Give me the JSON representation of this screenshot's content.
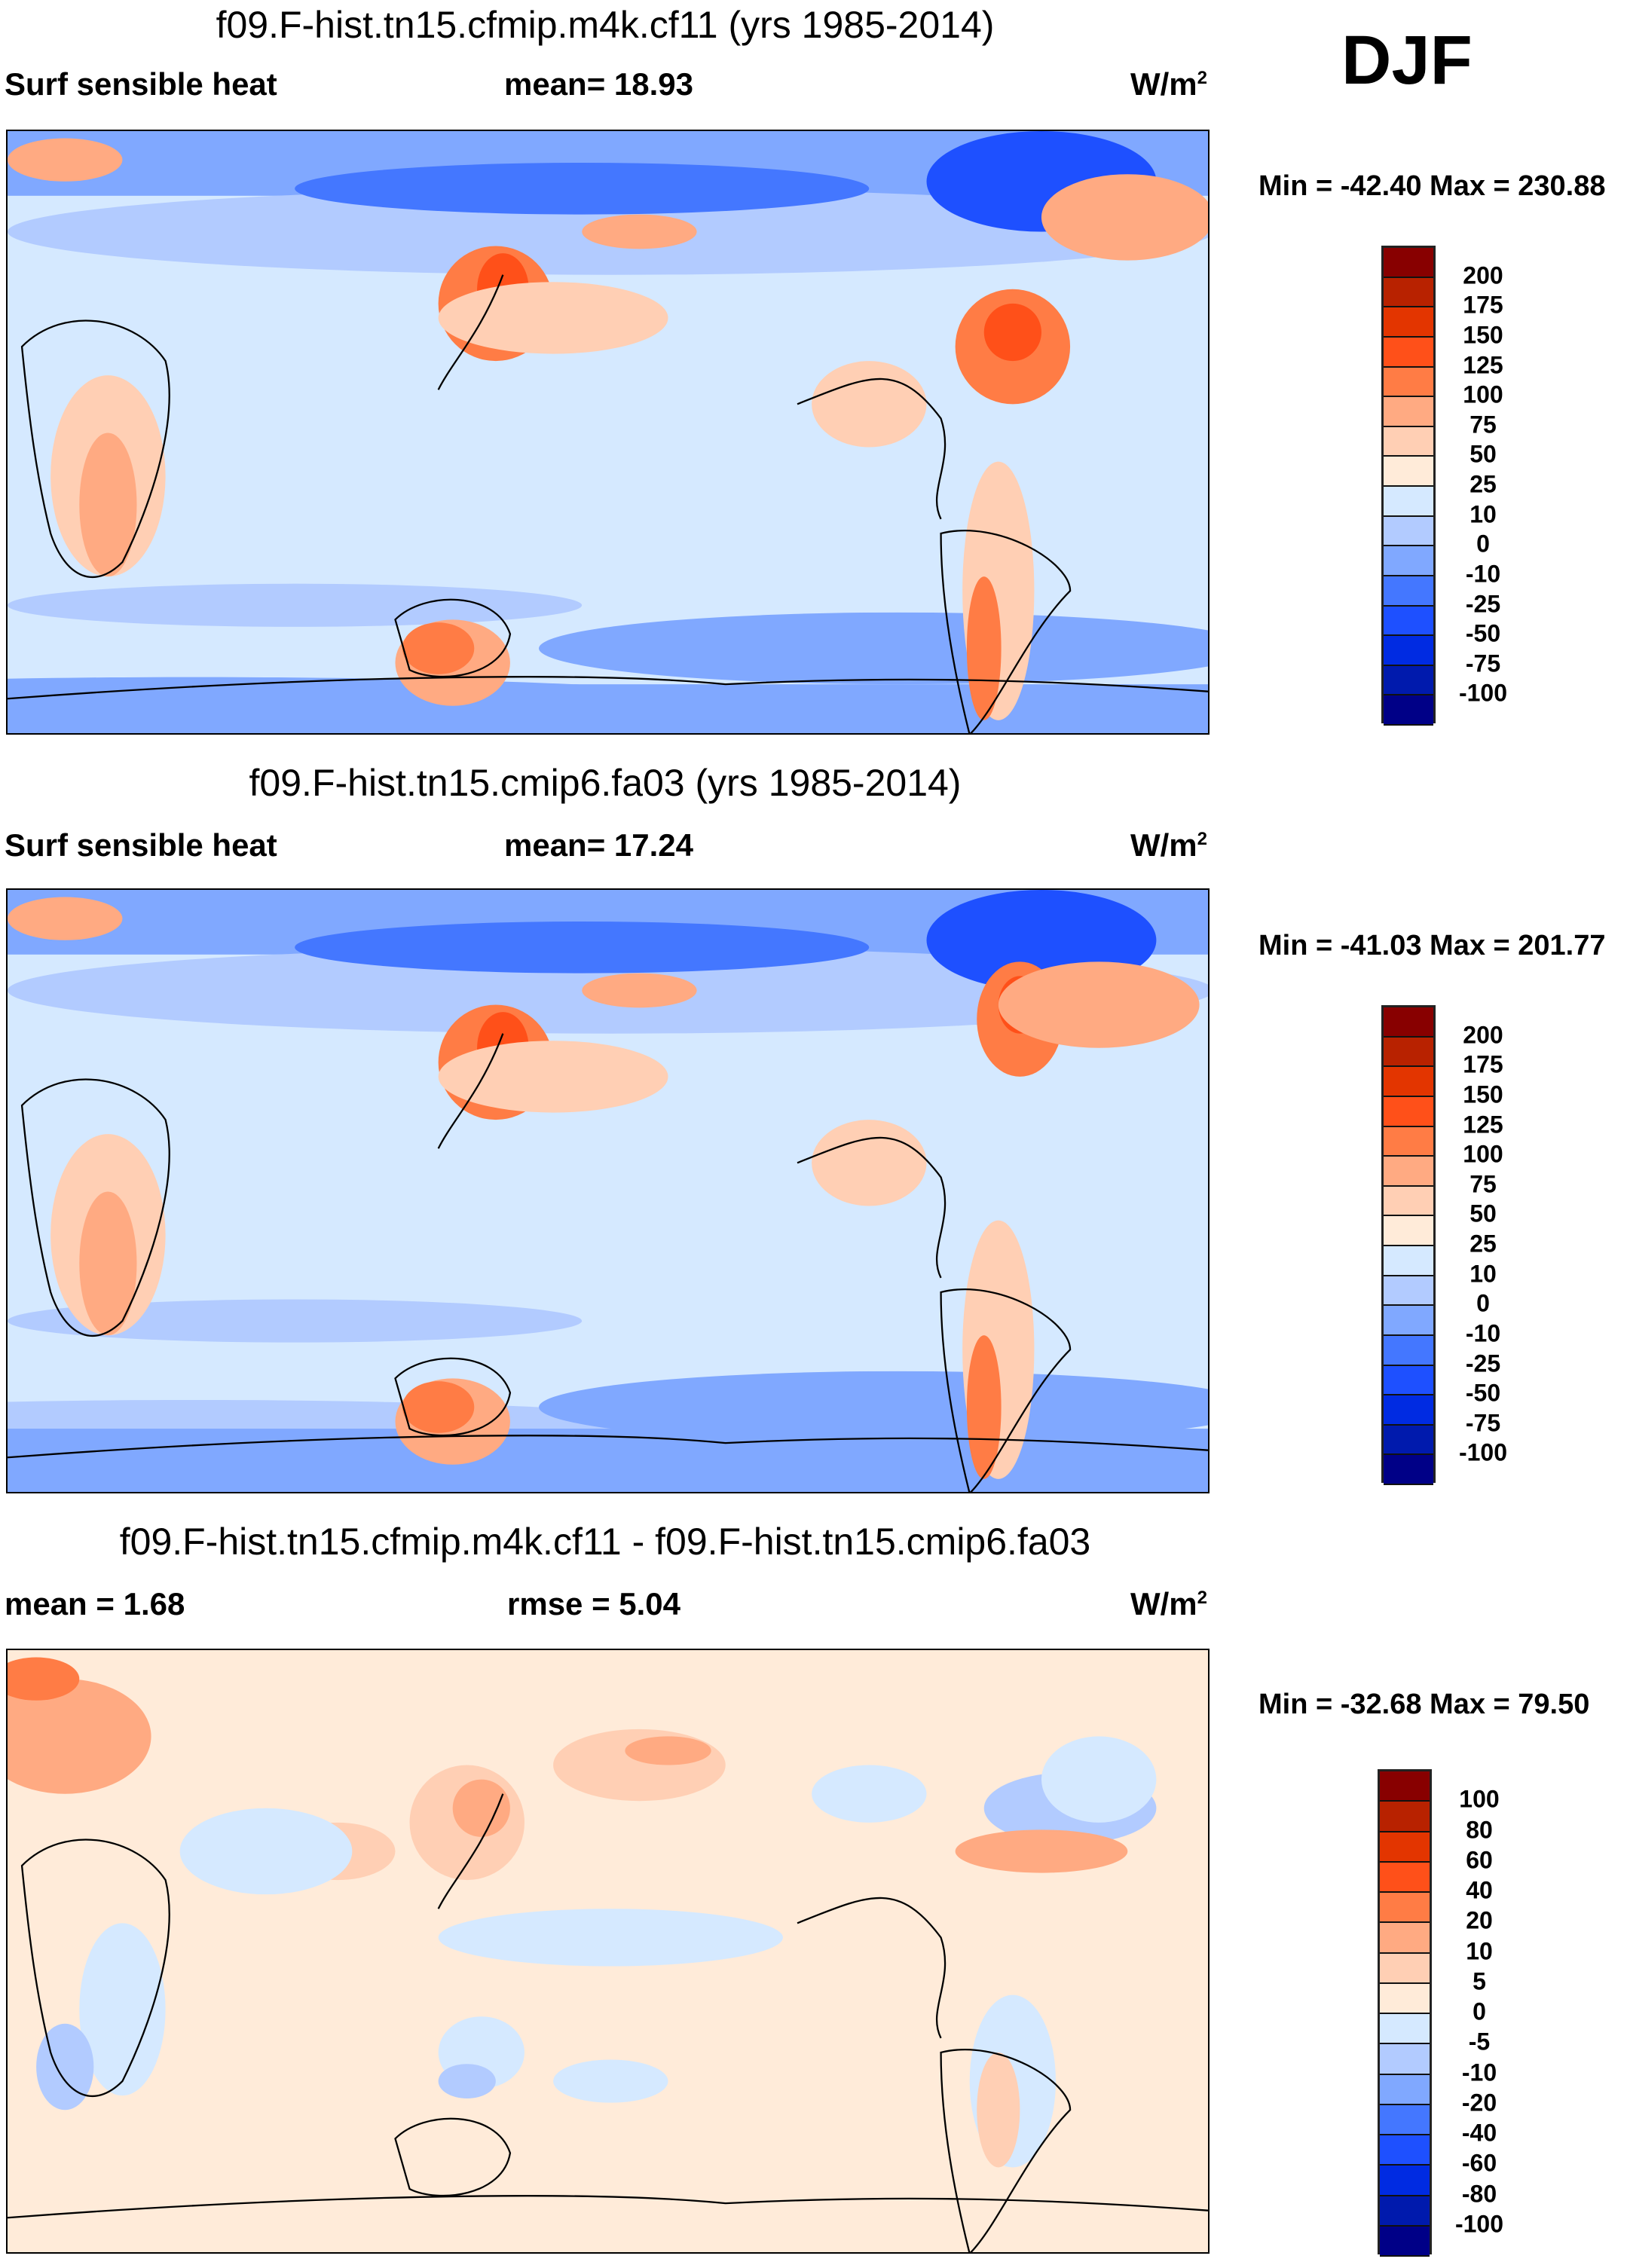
{
  "season": "DJF",
  "units_base": "W/m",
  "units_exp": "2",
  "chart_data": [
    {
      "type": "heatmap",
      "title": "f09.F-hist.tn15.cfmip.m4k.cf11 (yrs 1985-2014)",
      "left": "Surf sensible heat",
      "center": "mean=  18.93",
      "minmax": "Min = -42.40 Max = 230.88",
      "colorbar_labels": [
        "200",
        "175",
        "150",
        "125",
        "100",
        "75",
        "50",
        "25",
        "10",
        "0",
        "-10",
        "-25",
        "-50",
        "-75",
        "-100"
      ]
    },
    {
      "type": "heatmap",
      "title": "f09.F-hist.tn15.cmip6.fa03 (yrs 1985-2014)",
      "left": "Surf sensible heat",
      "center": "mean=  17.24",
      "minmax": "Min = -41.03 Max = 201.77",
      "colorbar_labels": [
        "200",
        "175",
        "150",
        "125",
        "100",
        "75",
        "50",
        "25",
        "10",
        "0",
        "-10",
        "-25",
        "-50",
        "-75",
        "-100"
      ]
    },
    {
      "type": "heatmap",
      "title": "f09.F-hist.tn15.cfmip.m4k.cf11 - f09.F-hist.tn15.cmip6.fa03",
      "left": "mean =   1.68",
      "center": "rmse =   5.04",
      "minmax": "Min = -32.68 Max =  79.50",
      "colorbar_labels": [
        "100",
        "80",
        "60",
        "40",
        "20",
        "10",
        "5",
        "0",
        "-5",
        "-10",
        "-20",
        "-40",
        "-60",
        "-80",
        "-100"
      ]
    }
  ],
  "colors": [
    "#880000",
    "#b82200",
    "#e33500",
    "#ff5019",
    "#ff7c45",
    "#ffaa82",
    "#ffcfb4",
    "#ffebd9",
    "#d5e9ff",
    "#b2cbff",
    "#80a8ff",
    "#4477ff",
    "#1e50ff",
    "#002be2",
    "#001aad",
    "#000087"
  ]
}
